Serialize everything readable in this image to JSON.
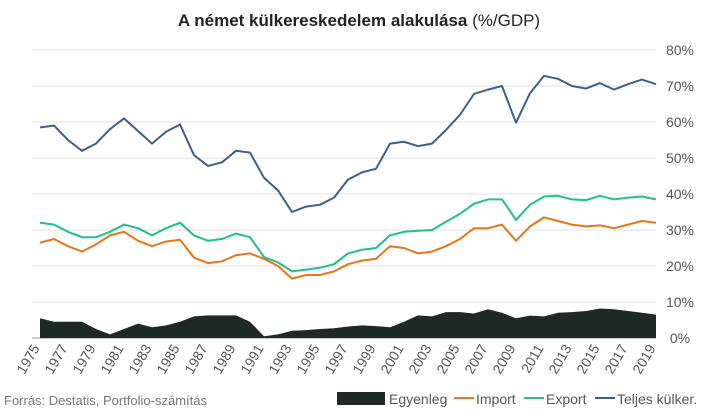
{
  "chart_data": {
    "type": "line",
    "title_main": "A német külkereskedelem alakulása",
    "title_unit": " (%/GDP)",
    "source": "Forrás: Destatis, Portfolio-számítás",
    "ylim": [
      0,
      80
    ],
    "y_ticks": [
      "0%",
      "10%",
      "20%",
      "30%",
      "40%",
      "50%",
      "60%",
      "70%",
      "80%"
    ],
    "x_tick_labels": [
      "1975",
      "1977",
      "1979",
      "1981",
      "1983",
      "1985",
      "1987",
      "1989",
      "1991",
      "1993",
      "1995",
      "1997",
      "1999",
      "2001",
      "2003",
      "2005",
      "2007",
      "2009",
      "2011",
      "2013",
      "2015",
      "2017",
      "2019"
    ],
    "grid": "horizontal",
    "legend_position": "bottom-right",
    "x": [
      1975,
      1976,
      1977,
      1978,
      1979,
      1980,
      1981,
      1982,
      1983,
      1984,
      1985,
      1986,
      1987,
      1988,
      1989,
      1990,
      1991,
      1992,
      1993,
      1994,
      1995,
      1996,
      1997,
      1998,
      1999,
      2000,
      2001,
      2002,
      2003,
      2004,
      2005,
      2006,
      2007,
      2008,
      2009,
      2010,
      2011,
      2012,
      2013,
      2014,
      2015,
      2016,
      2017,
      2018,
      2019
    ],
    "series": [
      {
        "name": "Egyenleg",
        "kind": "area",
        "color": "#1f2a26",
        "values": [
          5.5,
          4.5,
          4.5,
          4.5,
          2.5,
          1.0,
          2.5,
          4.0,
          3.0,
          3.5,
          4.5,
          6.0,
          6.3,
          6.3,
          6.3,
          4.5,
          0.5,
          1.0,
          2.0,
          2.2,
          2.5,
          2.7,
          3.2,
          3.5,
          3.3,
          3.0,
          4.5,
          6.3,
          6.0,
          7.2,
          7.2,
          6.8,
          8.0,
          7.0,
          5.5,
          6.2,
          6.0,
          7.0,
          7.2,
          7.5,
          8.2,
          8.0,
          7.5,
          7.0,
          6.5
        ]
      },
      {
        "name": "Import",
        "kind": "line",
        "color": "#e8751a",
        "values": [
          26.5,
          27.5,
          25.5,
          24.0,
          26.0,
          28.5,
          29.5,
          27.0,
          25.5,
          26.8,
          27.3,
          22.3,
          20.8,
          21.3,
          23.0,
          23.5,
          22.0,
          20.0,
          16.5,
          17.5,
          17.5,
          18.5,
          20.5,
          21.5,
          22.0,
          25.5,
          25.0,
          23.5,
          24.0,
          25.5,
          27.5,
          30.5,
          30.5,
          31.5,
          27.0,
          31.0,
          33.5,
          32.5,
          31.5,
          31.0,
          31.3,
          30.5,
          31.5,
          32.5,
          32.0
        ]
      },
      {
        "name": "Export",
        "kind": "line",
        "color": "#1ec08c",
        "values": [
          32.0,
          31.5,
          29.5,
          28.0,
          28.0,
          29.5,
          31.5,
          30.5,
          28.5,
          30.5,
          32.0,
          28.5,
          27.0,
          27.5,
          29.0,
          28.0,
          22.5,
          21.0,
          18.5,
          19.0,
          19.5,
          20.5,
          23.5,
          24.5,
          25.0,
          28.5,
          29.5,
          29.8,
          30.0,
          32.3,
          34.5,
          37.3,
          38.5,
          38.5,
          32.8,
          37.0,
          39.3,
          39.5,
          38.5,
          38.3,
          39.5,
          38.5,
          39.0,
          39.3,
          38.5
        ]
      },
      {
        "name": "Teljes külker.",
        "kind": "line",
        "color": "#3d5f8c",
        "values": [
          58.5,
          59.0,
          55.0,
          52.0,
          54.0,
          58.0,
          61.0,
          57.5,
          54.0,
          57.3,
          59.3,
          50.8,
          47.8,
          48.8,
          52.0,
          51.5,
          44.5,
          41.0,
          35.0,
          36.5,
          37.0,
          39.0,
          44.0,
          46.0,
          47.0,
          54.0,
          54.5,
          53.3,
          54.0,
          57.8,
          62.0,
          67.8,
          69.0,
          70.0,
          59.8,
          68.0,
          72.8,
          72.0,
          70.0,
          69.3,
          70.8,
          69.0,
          70.5,
          71.8,
          70.5
        ]
      }
    ]
  }
}
